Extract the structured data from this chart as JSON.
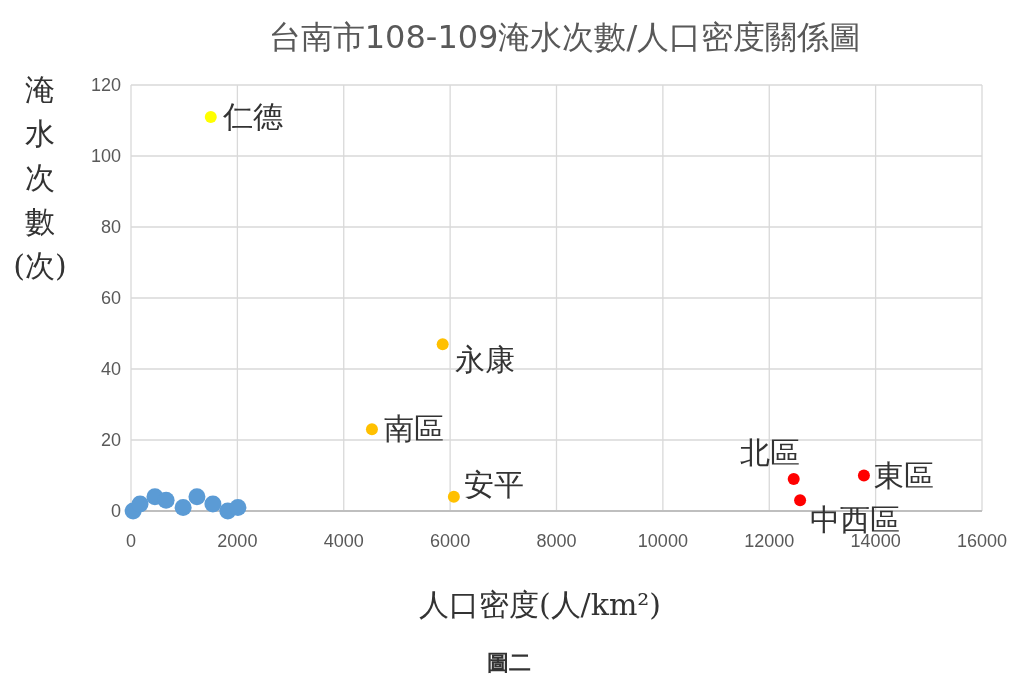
{
  "chart_data": {
    "type": "scatter",
    "title": "台南市108-109淹水次數/人口密度關係圖",
    "xlabel": "人口密度(人/km²)",
    "ylabel": "淹水次數(次)",
    "xlim": [
      0,
      16000
    ],
    "ylim": [
      0,
      120
    ],
    "xticks": [
      0,
      2000,
      4000,
      6000,
      8000,
      10000,
      12000,
      14000,
      16000
    ],
    "yticks": [
      0,
      20,
      40,
      60,
      80,
      100,
      120
    ],
    "grid": true,
    "marker": "circle",
    "series": [
      {
        "color": "#5b9bd5",
        "x": [
          40,
          170,
          450,
          660,
          980,
          1240,
          1540,
          1820,
          2010
        ],
        "values": [
          0,
          2,
          4,
          3,
          1,
          4,
          2,
          0,
          1
        ]
      },
      {
        "color": "#ffff00",
        "x": [
          1500
        ],
        "values": [
          111
        ]
      },
      {
        "color": "#ffc000",
        "x": [
          5860,
          4530,
          6070
        ],
        "values": [
          47,
          23,
          4
        ]
      },
      {
        "color": "#ff0000",
        "x": [
          12460,
          12580,
          13780
        ],
        "values": [
          9,
          3,
          10
        ]
      }
    ],
    "annotations": [
      {
        "text": "仁德",
        "x": 1500,
        "y": 111
      },
      {
        "text": "永康",
        "x": 5860,
        "y": 47
      },
      {
        "text": "南區",
        "x": 4530,
        "y": 23
      },
      {
        "text": "安平",
        "x": 6070,
        "y": 4
      },
      {
        "text": "北區",
        "x": 12460,
        "y": 9
      },
      {
        "text": "中西區",
        "x": 12580,
        "y": 3
      },
      {
        "text": "東區",
        "x": 13780,
        "y": 10
      },
      "圖二"
    ]
  }
}
